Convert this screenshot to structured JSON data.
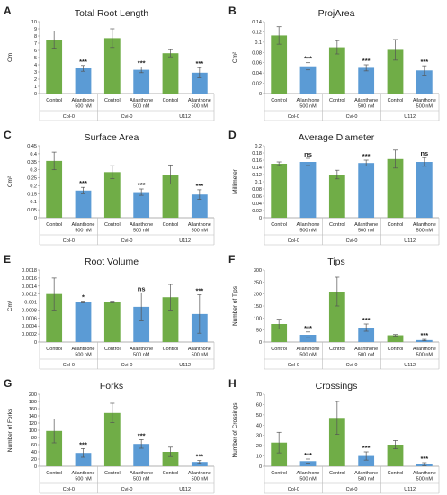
{
  "colors": {
    "control": "#70ad47",
    "treated": "#5b9bd5",
    "error": "#555555"
  },
  "chart_data": [
    {
      "type": "bar",
      "letter": "A",
      "title": "Total Root Length",
      "ylabel": "Cm",
      "ylim": [
        0,
        10
      ],
      "yticks": [
        "0",
        "1",
        "2",
        "3",
        "4",
        "5",
        "6",
        "7",
        "8",
        "9",
        "10"
      ],
      "groups": [
        "Col-0",
        "Cvi-0",
        "U112"
      ],
      "categories": [
        "Control",
        "Ailanthone",
        "Control",
        "Ailanthone",
        "Control",
        "Ailanthone"
      ],
      "category_sublabel": [
        "",
        "500 nM",
        "",
        "500 nM",
        "",
        "500 nM"
      ],
      "values": [
        7.5,
        3.5,
        7.7,
        3.3,
        5.6,
        2.9
      ],
      "errors": [
        1.2,
        0.4,
        1.3,
        0.4,
        0.5,
        0.7
      ],
      "significance": [
        "",
        "***",
        "",
        "***",
        "",
        "***"
      ]
    },
    {
      "type": "bar",
      "letter": "B",
      "title": "ProjArea",
      "ylabel": "Cm²",
      "ylim": [
        0,
        0.14
      ],
      "yticks": [
        "0",
        "0.02",
        "0.04",
        "0.06",
        "0.08",
        "0.1",
        "0.12",
        "0.14"
      ],
      "groups": [
        "Col-0",
        "Cvi-0",
        "U112"
      ],
      "categories": [
        "Control",
        "Ailanthone",
        "Control",
        "Ailanthone",
        "Control",
        "Ailanthone"
      ],
      "category_sublabel": [
        "",
        "500 nM",
        "",
        "500 nM",
        "",
        "500 nM"
      ],
      "values": [
        0.113,
        0.053,
        0.09,
        0.05,
        0.085,
        0.045
      ],
      "errors": [
        0.017,
        0.007,
        0.013,
        0.006,
        0.02,
        0.009
      ],
      "significance": [
        "",
        "***",
        "",
        "***",
        "",
        "***"
      ]
    },
    {
      "type": "bar",
      "letter": "C",
      "title": "Surface Area",
      "ylabel": "Cm²",
      "ylim": [
        0,
        0.45
      ],
      "yticks": [
        "0",
        "0.05",
        "0.1",
        "0.15",
        "0.2",
        "0.25",
        "0.3",
        "0.35",
        "0.4",
        "0.45"
      ],
      "groups": [
        "Col-0",
        "Cvi-0",
        "U112"
      ],
      "categories": [
        "Control",
        "Ailanthone",
        "Control",
        "Ailanthone",
        "Control",
        "Ailanthone"
      ],
      "category_sublabel": [
        "",
        "500 nM",
        "",
        "500 nM",
        "",
        "500 nM"
      ],
      "values": [
        0.355,
        0.17,
        0.285,
        0.16,
        0.27,
        0.145
      ],
      "errors": [
        0.055,
        0.02,
        0.04,
        0.02,
        0.06,
        0.03
      ],
      "significance": [
        "",
        "***",
        "",
        "***",
        "",
        "***"
      ]
    },
    {
      "type": "bar",
      "letter": "D",
      "title": "Average Diameter",
      "ylabel": "Millimeter",
      "ylim": [
        0,
        0.2
      ],
      "yticks": [
        "0",
        "0.02",
        "0.04",
        "0.06",
        "0.08",
        "0.1",
        "0.12",
        "0.14",
        "0.16",
        "0.18",
        "0.2"
      ],
      "groups": [
        "Col-0",
        "Cvi-0",
        "U112"
      ],
      "categories": [
        "Control",
        "Ailanthone",
        "Control",
        "Ailanthone",
        "Control",
        "Ailanthone"
      ],
      "category_sublabel": [
        "",
        "500 nM",
        "",
        "500 nM",
        "",
        "500 nM"
      ],
      "values": [
        0.15,
        0.155,
        0.12,
        0.152,
        0.163,
        0.155
      ],
      "errors": [
        0.005,
        0.01,
        0.012,
        0.008,
        0.025,
        0.012
      ],
      "significance": [
        "",
        "ns",
        "",
        "***",
        "",
        "ns"
      ]
    },
    {
      "type": "bar",
      "letter": "E",
      "title": "Root Volume",
      "ylabel": "Cm³",
      "ylim": [
        0,
        0.0018
      ],
      "yticks": [
        "0",
        "0.0002",
        "0.0004",
        "0.0006",
        "0.0008",
        "0.001",
        "0.0012",
        "0.0014",
        "0.0016",
        "0.0018"
      ],
      "groups": [
        "Col-0",
        "Cvi-0",
        "U112"
      ],
      "categories": [
        "Control",
        "Ailanthone",
        "Control",
        "Ailanthone",
        "Control",
        "Ailanthone"
      ],
      "category_sublabel": [
        "",
        "500 nM",
        "",
        "500 nM",
        "",
        "500 nM"
      ],
      "values": [
        0.0012,
        0.001,
        0.001,
        0.00088,
        0.00112,
        0.0007
      ],
      "errors": [
        0.0004,
        2e-05,
        2e-05,
        0.00035,
        0.00032,
        0.00048
      ],
      "significance": [
        "",
        "*",
        "",
        "ns",
        "",
        "***"
      ]
    },
    {
      "type": "bar",
      "letter": "F",
      "title": "Tips",
      "ylabel": "Number of Tips",
      "ylim": [
        0,
        300
      ],
      "yticks": [
        "0",
        "50",
        "100",
        "150",
        "200",
        "250",
        "300"
      ],
      "groups": [
        "Col-0",
        "Cvi-0",
        "U112"
      ],
      "categories": [
        "Control",
        "Ailanthone",
        "Control",
        "Ailanthone",
        "Control",
        "Ailanthone"
      ],
      "category_sublabel": [
        "",
        "500 nM",
        "",
        "500 nM",
        "",
        "500 nM"
      ],
      "values": [
        75,
        30,
        210,
        60,
        28,
        8
      ],
      "errors": [
        20,
        12,
        60,
        15,
        3,
        3
      ],
      "significance": [
        "",
        "***",
        "",
        "***",
        "",
        "***"
      ]
    },
    {
      "type": "bar",
      "letter": "G",
      "title": "Forks",
      "ylabel": "Number of Forks",
      "ylim": [
        0,
        200
      ],
      "yticks": [
        "0",
        "20",
        "40",
        "60",
        "80",
        "100",
        "120",
        "140",
        "160",
        "180",
        "200"
      ],
      "groups": [
        "Col-0",
        "Cvi-0",
        "U112"
      ],
      "categories": [
        "Control",
        "Ailanthone",
        "Control",
        "Ailanthone",
        "Control",
        "Ailanthone"
      ],
      "category_sublabel": [
        "",
        "500 nM",
        "",
        "500 nM",
        "",
        "500 nM"
      ],
      "values": [
        98,
        37,
        148,
        62,
        40,
        12
      ],
      "errors": [
        33,
        12,
        27,
        12,
        13,
        4
      ],
      "significance": [
        "",
        "***",
        "",
        "***",
        "",
        "***"
      ]
    },
    {
      "type": "bar",
      "letter": "H",
      "title": "Crossings",
      "ylabel": "Number of Crossings",
      "ylim": [
        0,
        70
      ],
      "yticks": [
        "0",
        "10",
        "20",
        "30",
        "40",
        "50",
        "60",
        "70"
      ],
      "groups": [
        "Col-0",
        "Cvi-0",
        "U112"
      ],
      "categories": [
        "Control",
        "Ailanthone",
        "Control",
        "Ailanthone",
        "Control",
        "Ailanthone"
      ],
      "category_sublabel": [
        "",
        "500 nM",
        "",
        "500 nM",
        "",
        "500 nM"
      ],
      "values": [
        23,
        5,
        47,
        10,
        21,
        2
      ],
      "errors": [
        10,
        2,
        16,
        4,
        4,
        1.5
      ],
      "significance": [
        "",
        "***",
        "",
        "***",
        "",
        "***"
      ]
    }
  ]
}
